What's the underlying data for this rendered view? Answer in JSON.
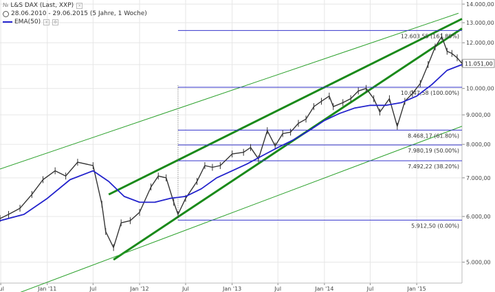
{
  "header": {
    "title": "L&S DAX (Last, XXP)",
    "range": "28.06.2010 - 29.06.2015 (5 Jahre, 1 Woche)",
    "indicator": "EMA(50)"
  },
  "colors": {
    "price": "#333333",
    "ema": "#2222cc",
    "channel_main": "#1a8a1a",
    "channel_outer": "#2aa02a",
    "fib": "#3333cc",
    "grid": "#e6e6e6"
  },
  "chart_data": {
    "type": "line",
    "ylabel": "",
    "yscale": "log",
    "ylim": [
      4600,
      14000
    ],
    "xlim": [
      "2010-06-28",
      "2015-06-29"
    ],
    "y_ticks": [
      5000,
      6000,
      7000,
      8000,
      9000,
      10000,
      11000,
      12000,
      13000,
      14000
    ],
    "y_tick_labels": [
      "5.000,00",
      "6.000,00",
      "7.000,00",
      "8.000,00",
      "9.000,00",
      "10.000,00",
      "11.000,00",
      "12.000,00",
      "13.000,00",
      "14.000,00"
    ],
    "x_ticks": [
      "2010-07-01",
      "2011-01-01",
      "2011-07-01",
      "2012-01-01",
      "2012-07-01",
      "2013-01-01",
      "2013-07-01",
      "2014-01-01",
      "2014-07-01",
      "2015-01-01"
    ],
    "x_tick_labels": [
      "Jul",
      "Jan '11",
      "Jul",
      "Jan '12",
      "Jul",
      "Jan '13",
      "Jul",
      "Jan '14",
      "Jul",
      "Jan '15"
    ],
    "last_value": 11051,
    "last_value_label": "11.051,00",
    "series": [
      {
        "name": "L&S DAX",
        "x": [
          "2010-06-28",
          "2010-08-01",
          "2010-09-15",
          "2010-11-01",
          "2010-12-15",
          "2011-02-01",
          "2011-03-15",
          "2011-05-01",
          "2011-07-01",
          "2011-08-05",
          "2011-08-20",
          "2011-09-20",
          "2011-10-20",
          "2011-11-25",
          "2012-01-01",
          "2012-02-15",
          "2012-03-15",
          "2012-04-15",
          "2012-05-15",
          "2012-06-01",
          "2012-07-01",
          "2012-08-15",
          "2012-09-15",
          "2012-10-15",
          "2012-11-15",
          "2013-01-01",
          "2013-02-15",
          "2013-03-15",
          "2013-04-15",
          "2013-05-20",
          "2013-06-20",
          "2013-07-20",
          "2013-08-20",
          "2013-09-20",
          "2013-10-20",
          "2013-11-20",
          "2013-12-20",
          "2014-01-20",
          "2014-02-05",
          "2014-03-15",
          "2014-04-15",
          "2014-05-15",
          "2014-06-15",
          "2014-07-15",
          "2014-08-08",
          "2014-09-15",
          "2014-10-16",
          "2014-11-15",
          "2014-12-15",
          "2015-01-15",
          "2015-02-15",
          "2015-03-15",
          "2015-04-10",
          "2015-05-01",
          "2015-05-20",
          "2015-06-10",
          "2015-06-29"
        ],
        "values": [
          5950,
          6050,
          6200,
          6550,
          6950,
          7200,
          7050,
          7450,
          7350,
          6300,
          5650,
          5300,
          5850,
          5900,
          6100,
          6750,
          7050,
          7000,
          6350,
          6050,
          6450,
          6900,
          7350,
          7300,
          7350,
          7700,
          7750,
          7900,
          7550,
          8450,
          7950,
          8350,
          8400,
          8700,
          8850,
          9300,
          9500,
          9700,
          9300,
          9450,
          9600,
          9900,
          10000,
          9600,
          9100,
          9600,
          8600,
          9500,
          9800,
          10200,
          11000,
          11800,
          12300,
          11600,
          11500,
          11300,
          11051
        ]
      },
      {
        "name": "EMA(50)",
        "x": [
          "2010-06-28",
          "2010-10-01",
          "2011-01-01",
          "2011-04-01",
          "2011-07-01",
          "2011-09-01",
          "2011-11-01",
          "2012-01-01",
          "2012-03-01",
          "2012-05-01",
          "2012-07-01",
          "2012-09-01",
          "2012-11-01",
          "2013-01-01",
          "2013-03-01",
          "2013-05-01",
          "2013-07-01",
          "2013-09-01",
          "2013-11-01",
          "2014-01-01",
          "2014-03-01",
          "2014-05-01",
          "2014-07-01",
          "2014-09-01",
          "2014-11-01",
          "2015-01-01",
          "2015-03-01",
          "2015-05-01",
          "2015-06-29"
        ],
        "values": [
          5900,
          6050,
          6450,
          6950,
          7200,
          6900,
          6500,
          6350,
          6350,
          6450,
          6500,
          6700,
          7000,
          7200,
          7400,
          7650,
          7900,
          8150,
          8450,
          8800,
          9050,
          9250,
          9350,
          9350,
          9450,
          9700,
          10150,
          10750,
          11000
        ]
      }
    ],
    "fib_levels": [
      {
        "value": 12603.55,
        "label": "12.603,55 (161.80%)"
      },
      {
        "value": 10047.58,
        "label": "10.047,58 (100.00%)"
      },
      {
        "value": 8468.17,
        "label": "8.468,17 (61.80%)"
      },
      {
        "value": 7980.19,
        "label": "7.980,19 (50.00%)"
      },
      {
        "value": 7492.22,
        "label": "7.492,22 (38.20%)"
      },
      {
        "value": 5912.5,
        "label": "5.912,50 (0.00%)"
      }
    ],
    "fib_start": "2012-06-01",
    "channels": [
      {
        "kind": "main",
        "x": [
          "2011-09-20",
          "2015-06-29"
        ],
        "y": [
          5050,
          12700
        ]
      },
      {
        "kind": "main",
        "x": [
          "2011-09-01",
          "2015-06-29"
        ],
        "y": [
          6550,
          13200
        ]
      },
      {
        "kind": "outer",
        "x": [
          "2010-06-28",
          "2015-06-15"
        ],
        "y": [
          7250,
          13500
        ]
      },
      {
        "kind": "outer",
        "x": [
          "2010-06-28",
          "2015-06-29"
        ],
        "y": [
          4300,
          8600
        ]
      }
    ]
  }
}
